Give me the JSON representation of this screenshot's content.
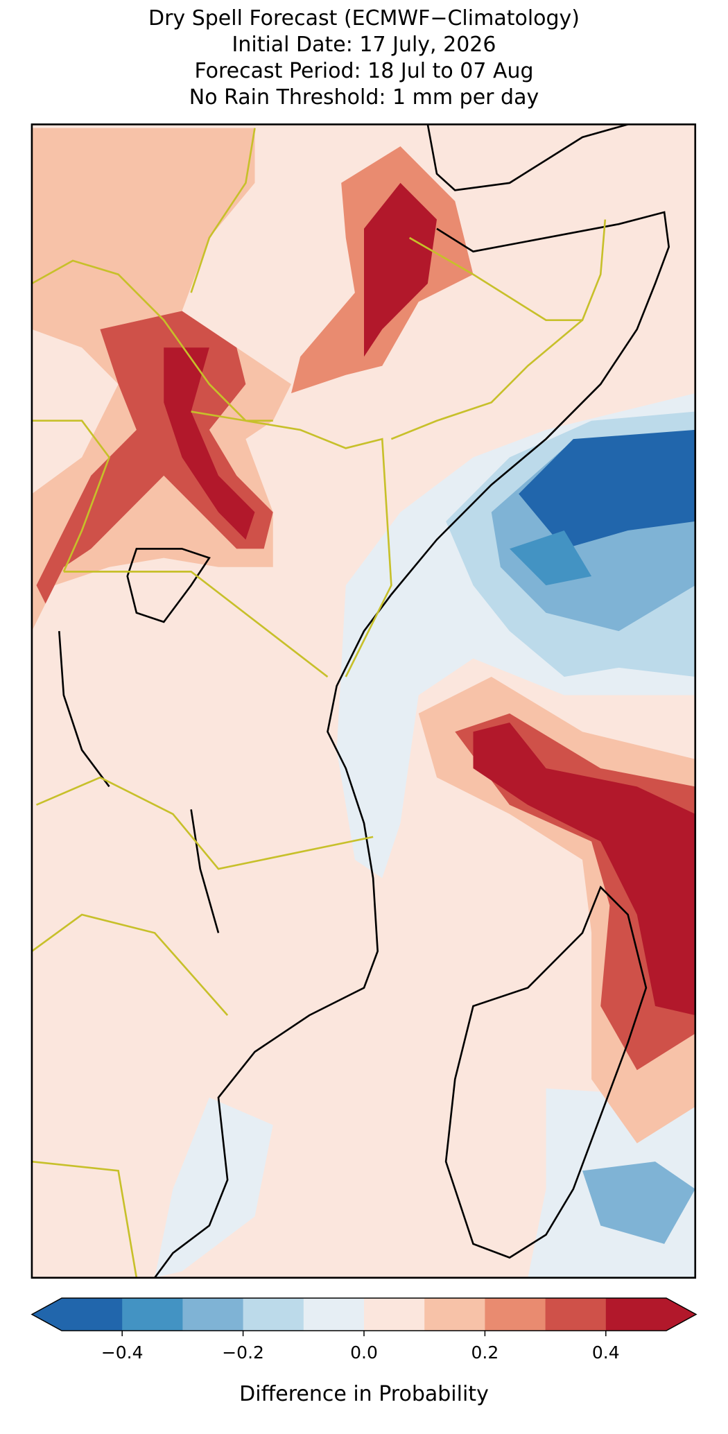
{
  "chart_data": {
    "type": "map",
    "title": [
      "Dry Spell Forecast (ECMWF−Climatology)",
      "Initial Date: 17 July, 2026",
      "Forecast Period: 18 Jul to 07 Aug",
      "No Rain Threshold: 1 mm per day"
    ],
    "colorbar": {
      "label": "Difference in Probability",
      "levels": [
        -0.5,
        -0.4,
        -0.3,
        -0.2,
        -0.1,
        0,
        0.1,
        0.2,
        0.3,
        0.4,
        0.5
      ],
      "colors": [
        "#2166ac",
        "#4393c3",
        "#7fb3d5",
        "#bcdaea",
        "#e6eef4",
        "#fbe6dd",
        "#f7c2a8",
        "#e98b70",
        "#cf5149",
        "#b2182b"
      ],
      "extend": "both",
      "ticks": [
        {
          "value": -0.4,
          "label": "−0.4"
        },
        {
          "value": -0.2,
          "label": "−0.2"
        },
        {
          "value": 0,
          "label": "0.0"
        },
        0.2,
        0.4
      ]
    }
  }
}
